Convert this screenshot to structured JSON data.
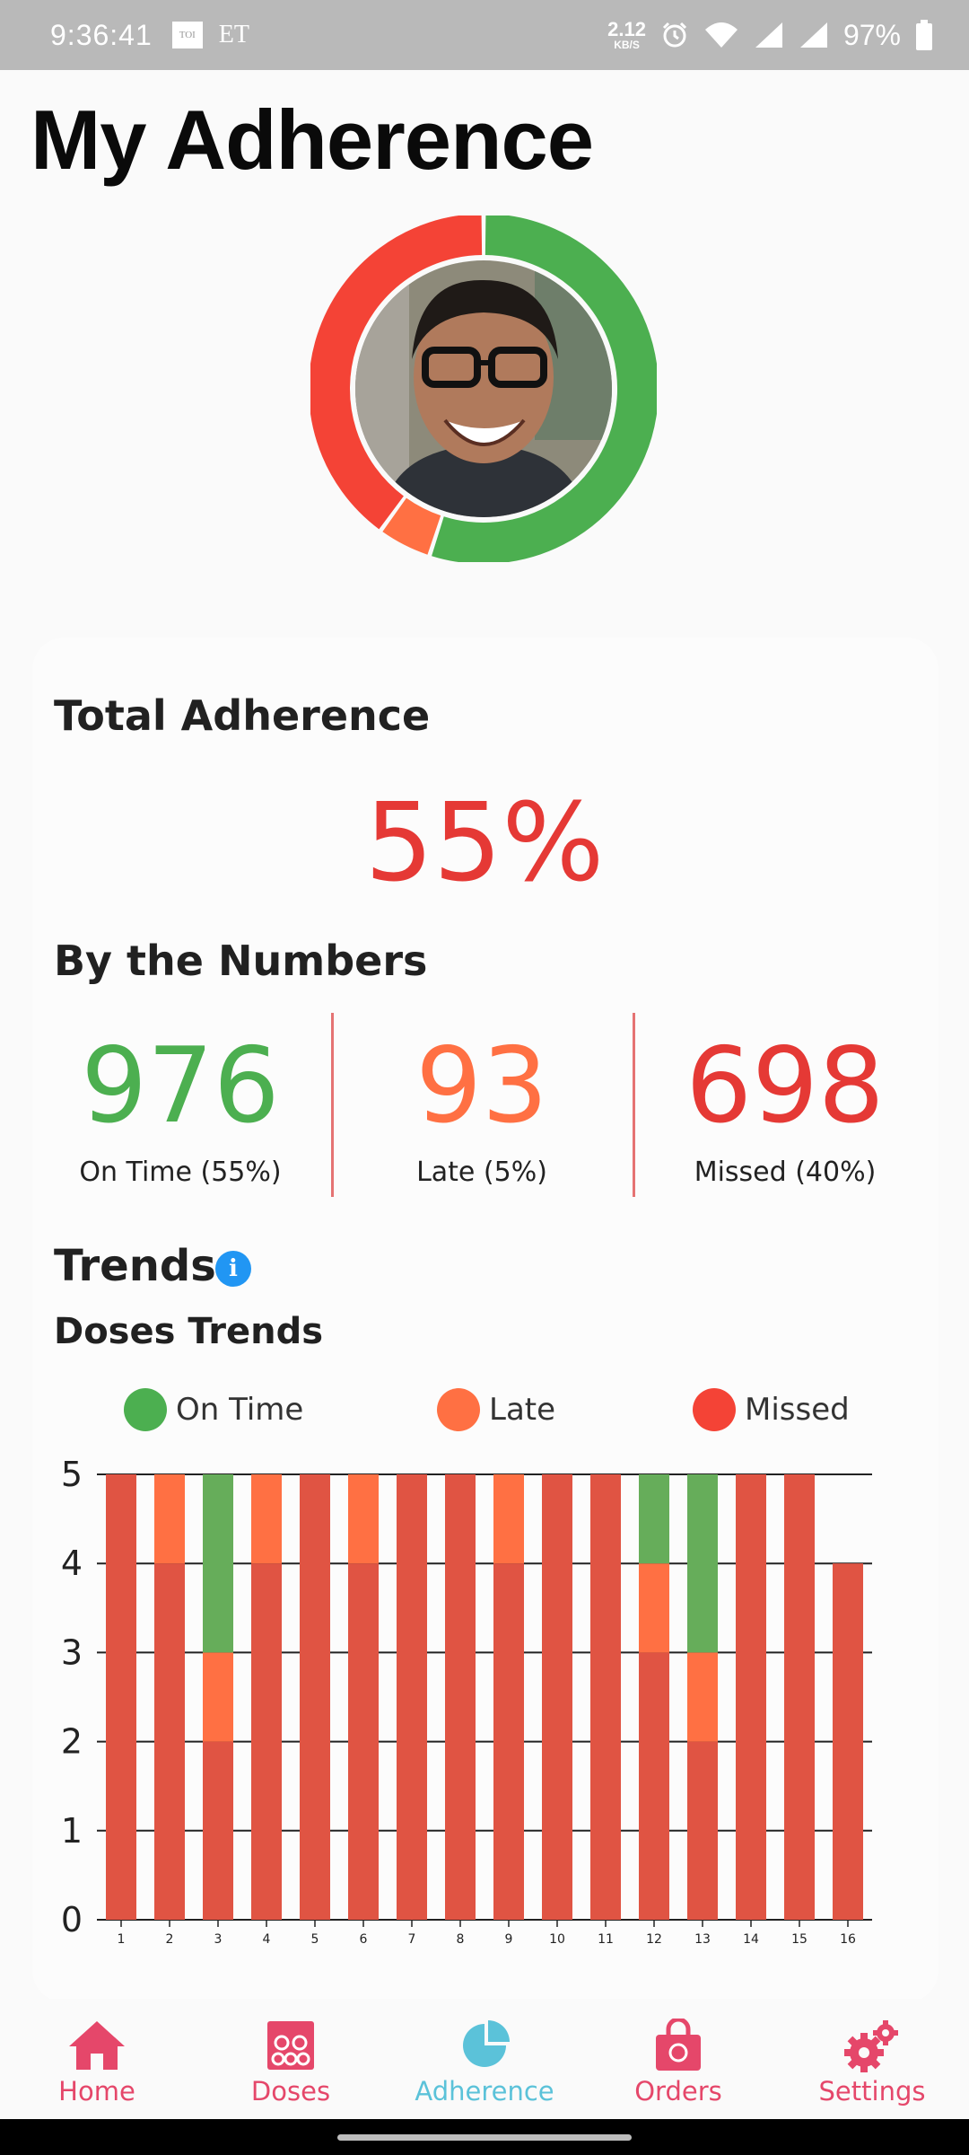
{
  "status_bar": {
    "time": "9:36:41",
    "left_icons": [
      "toi-icon",
      "et-icon"
    ],
    "toi_label": "TOI",
    "et_label": "ET",
    "net_speed_value": "2.12",
    "net_speed_unit": "KB/S",
    "battery": "97%",
    "background": "#b9b9b9"
  },
  "page": {
    "title": "My Adherence"
  },
  "adherence_ring": {
    "on_time": 55,
    "late": 5,
    "missed": 40,
    "colors": {
      "on_time": "#4caf50",
      "late": "#ff7043",
      "missed": "#f44336"
    }
  },
  "total": {
    "heading": "Total Adherence",
    "value": "55%"
  },
  "numbers": {
    "heading": "By the Numbers",
    "on_time": {
      "value": "976",
      "label": "On Time (55%)",
      "color": "#4caf50"
    },
    "late": {
      "value": "93",
      "label": "Late (5%)",
      "color": "#ff7043"
    },
    "missed": {
      "value": "698",
      "label": "Missed (40%)",
      "color": "#e53935"
    }
  },
  "trends": {
    "heading": "Trends",
    "subheading": "Doses Trends"
  },
  "chart_data": {
    "type": "bar",
    "stacked": true,
    "categories": [
      "1",
      "2",
      "3",
      "4",
      "5",
      "6",
      "7",
      "8",
      "9",
      "10",
      "11",
      "12",
      "13",
      "14",
      "15",
      "16"
    ],
    "series": [
      {
        "name": "Missed",
        "color": "#e05443",
        "values": [
          5,
          4,
          2,
          4,
          5,
          4,
          5,
          5,
          4,
          5,
          5,
          3,
          2,
          5,
          5,
          4
        ]
      },
      {
        "name": "Late",
        "color": "#ff7043",
        "values": [
          0,
          1,
          1,
          1,
          0,
          1,
          0,
          0,
          1,
          0,
          0,
          1,
          1,
          0,
          0,
          0
        ]
      },
      {
        "name": "On Time",
        "color": "#66ad5a",
        "values": [
          0,
          0,
          2,
          0,
          0,
          0,
          0,
          0,
          0,
          0,
          0,
          1,
          2,
          0,
          0,
          0
        ]
      }
    ],
    "legend": [
      "On Time",
      "Late",
      "Missed"
    ],
    "legend_colors": [
      "#4caf50",
      "#ff7043",
      "#f44336"
    ],
    "y_ticks": [
      "0",
      "1",
      "2",
      "3",
      "4",
      "5"
    ],
    "ylim": [
      0,
      5
    ],
    "grid": true,
    "legend_position": "top"
  },
  "bottom_nav": {
    "items": [
      {
        "label": "Home",
        "icon": "home-icon",
        "active": false
      },
      {
        "label": "Doses",
        "icon": "pill-box-icon",
        "active": false
      },
      {
        "label": "Adherence",
        "icon": "pie-chart-icon",
        "active": true
      },
      {
        "label": "Orders",
        "icon": "shopping-bag-icon",
        "active": false
      },
      {
        "label": "Settings",
        "icon": "gear-icon",
        "active": false
      }
    ],
    "inactive_color": "#e5476a",
    "active_color": "#5bc2d9"
  }
}
